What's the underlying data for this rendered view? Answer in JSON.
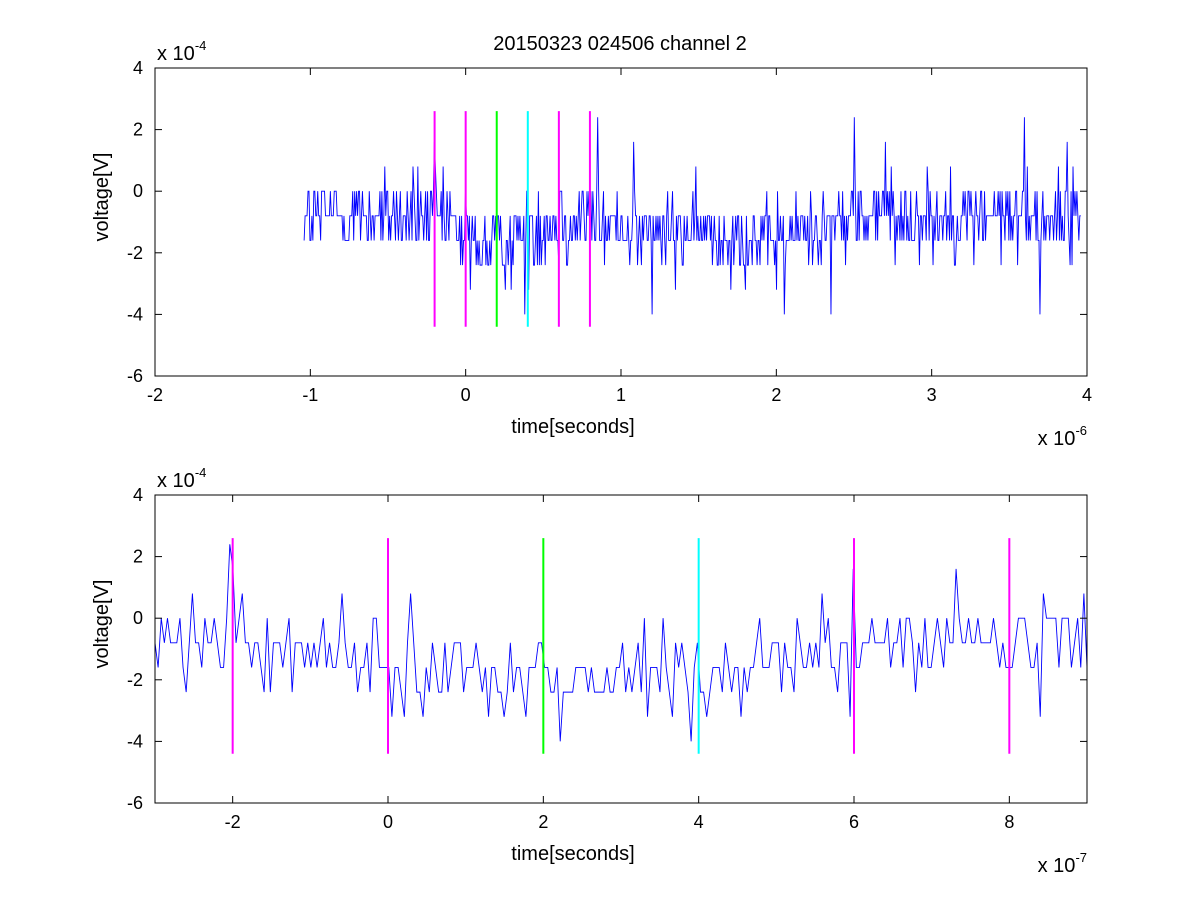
{
  "figure_title": "20150323 024506 channel 2",
  "chart_data": [
    {
      "type": "line",
      "title": "20150323 024506 channel 2",
      "xlabel": "time[seconds]",
      "ylabel": "voltage[V]",
      "x_multiplier": {
        "base": "x 10",
        "exp": "-6"
      },
      "y_multiplier": {
        "base": "x 10",
        "exp": "-4"
      },
      "xlim": [
        -2,
        4
      ],
      "ylim": [
        -6,
        4
      ],
      "x_ticks": [
        "-2",
        "-1",
        "0",
        "1",
        "2",
        "3",
        "4"
      ],
      "y_ticks": [
        "-6",
        "-4",
        "-2",
        "0",
        "2",
        "4"
      ],
      "grid": false,
      "trace": {
        "color": "#0000ff",
        "x_start": -1.04,
        "x_end": 3.96,
        "levels": [
          -4,
          -3.2,
          -2.4,
          -1.6,
          -0.8,
          0,
          0.8,
          1.6,
          2.4
        ],
        "baseline": -0.8,
        "noise": 0.7,
        "points": 800,
        "bumps": [
          {
            "x": 0.18,
            "width": 0.25,
            "depth": -1.0
          },
          {
            "x": 1.2,
            "width": 0.35,
            "depth": -0.5
          },
          {
            "x": 1.9,
            "width": 0.4,
            "depth": -0.8
          }
        ],
        "spikes": [
          [
            -0.2,
            1.6
          ],
          [
            0.85,
            2.4
          ],
          [
            1.08,
            1.6
          ],
          [
            2.05,
            -4.0
          ],
          [
            2.35,
            -4.0
          ],
          [
            2.5,
            2.4
          ],
          [
            2.7,
            1.6
          ],
          [
            3.6,
            2.4
          ],
          [
            3.7,
            -4.0
          ],
          [
            3.87,
            1.6
          ],
          [
            0.03,
            -3.2
          ],
          [
            0.38,
            -4.0
          ],
          [
            1.2,
            -4.0
          ]
        ]
      },
      "markers": {
        "ymin": -4.4,
        "ymax": 2.6,
        "lines": [
          {
            "x": -0.2,
            "color": "#ff00ff"
          },
          {
            "x": 0.0,
            "color": "#ff00ff"
          },
          {
            "x": 0.2,
            "color": "#00ff00"
          },
          {
            "x": 0.4,
            "color": "#00ffff"
          },
          {
            "x": 0.6,
            "color": "#ff00ff"
          },
          {
            "x": 0.8,
            "color": "#ff00ff"
          }
        ]
      }
    },
    {
      "type": "line",
      "title": "",
      "xlabel": "time[seconds]",
      "ylabel": "voltage[V]",
      "x_multiplier": {
        "base": "x 10",
        "exp": "-7"
      },
      "y_multiplier": {
        "base": "x 10",
        "exp": "-4"
      },
      "xlim": [
        -3,
        9
      ],
      "ylim": [
        -6,
        4
      ],
      "x_ticks": [
        "-2",
        "0",
        "2",
        "4",
        "6",
        "8"
      ],
      "x_tick_values": [
        -2,
        0,
        2,
        4,
        6,
        8
      ],
      "y_ticks": [
        "-6",
        "-4",
        "-2",
        "0",
        "2",
        "4"
      ],
      "grid": false,
      "trace": {
        "color": "#0000ff",
        "x_start": -3,
        "x_end": 9,
        "levels": [
          -4,
          -3.2,
          -2.4,
          -1.6,
          -0.8,
          0,
          0.8,
          1.6,
          2.4
        ],
        "baseline": -0.8,
        "noise": 0.7,
        "points": 300,
        "bumps": [
          {
            "x": 1.8,
            "width": 2.5,
            "depth": -1.0
          },
          {
            "x": 4.2,
            "width": 1.0,
            "depth": -0.8
          }
        ],
        "spikes": [
          [
            -2.6,
            -2.4
          ],
          [
            -2.05,
            2.4
          ],
          [
            -2.0,
            1.6
          ],
          [
            2.2,
            -4.0
          ],
          [
            3.9,
            -4.0
          ],
          [
            6.0,
            1.6
          ],
          [
            5.95,
            -3.2
          ],
          [
            8.4,
            -3.2
          ],
          [
            6.8,
            -2.4
          ],
          [
            7.3,
            1.6
          ],
          [
            -0.6,
            0.8
          ],
          [
            0.3,
            0.8
          ],
          [
            0.05,
            -3.2
          ],
          [
            1.5,
            -3.2
          ]
        ]
      },
      "markers": {
        "ymin": -4.4,
        "ymax": 2.6,
        "lines": [
          {
            "x": -2,
            "color": "#ff00ff"
          },
          {
            "x": 0,
            "color": "#ff00ff"
          },
          {
            "x": 2,
            "color": "#00ff00"
          },
          {
            "x": 4,
            "color": "#00ffff"
          },
          {
            "x": 6,
            "color": "#ff00ff"
          },
          {
            "x": 8,
            "color": "#ff00ff"
          }
        ]
      }
    }
  ]
}
